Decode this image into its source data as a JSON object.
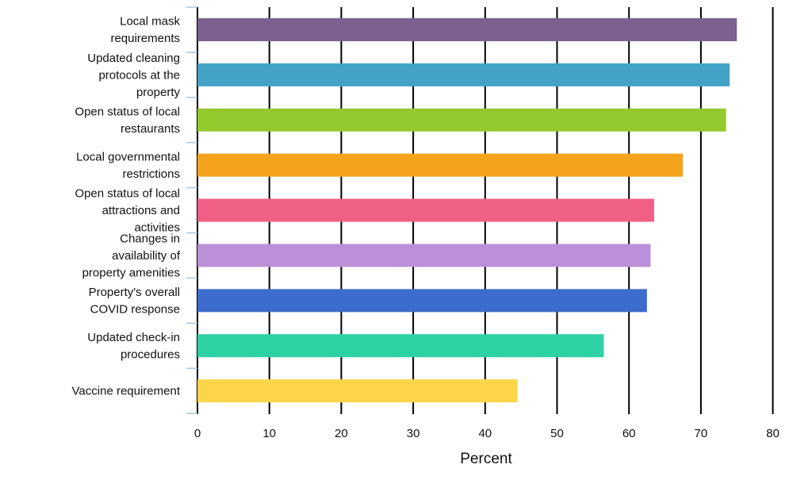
{
  "chart_data": {
    "type": "bar",
    "orientation": "horizontal",
    "title": "",
    "xlabel": "Percent",
    "ylabel": "",
    "xlim": [
      0,
      80
    ],
    "xticks": [
      0,
      10,
      20,
      30,
      40,
      50,
      60,
      70,
      80
    ],
    "grid": "vertical",
    "categories": [
      [
        "Local mask",
        "requirements"
      ],
      [
        "Updated cleaning",
        "protocols at the",
        "property"
      ],
      [
        "Open status of local",
        "restaurants"
      ],
      [
        "Local governmental",
        "restrictions"
      ],
      [
        "Open status of local",
        "attractions and",
        "activities"
      ],
      [
        "Changes in",
        "availability of",
        "property amenities"
      ],
      [
        "Property's overall",
        "COVID response"
      ],
      [
        "Updated check-in",
        "procedures"
      ],
      [
        "Vaccine requirement"
      ]
    ],
    "values": [
      75.0,
      74.0,
      73.5,
      67.5,
      63.5,
      63.0,
      62.5,
      56.5,
      44.5
    ],
    "colors": [
      "#7b6090",
      "#42a3c6",
      "#94c92e",
      "#f5a21c",
      "#f06085",
      "#bc90d8",
      "#3d6ccf",
      "#2dd2a4",
      "#fcd548"
    ]
  }
}
